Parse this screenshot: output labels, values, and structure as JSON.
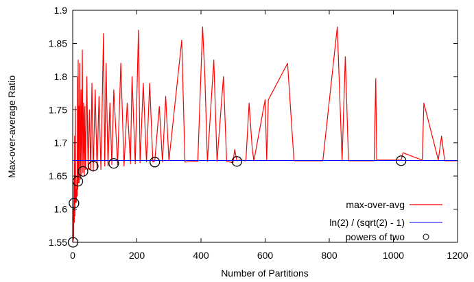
{
  "chart_data": {
    "type": "line",
    "title": "",
    "xlabel": "Number of Partitions",
    "ylabel": "Max-over-average Ratio",
    "xlim": [
      0,
      1200
    ],
    "ylim": [
      1.55,
      1.9
    ],
    "xticks": [
      0,
      200,
      400,
      600,
      800,
      1000,
      1200
    ],
    "yticks": [
      1.55,
      1.6,
      1.65,
      1.7,
      1.75,
      1.8,
      1.85,
      1.9
    ],
    "xtick_labels": [
      "0",
      "200",
      "400",
      "600",
      "800",
      "1000",
      "1200"
    ],
    "ytick_labels": [
      "1.55",
      "1.6",
      "1.65",
      "1.7",
      "1.75",
      "1.8",
      "1.85",
      "1.9"
    ],
    "grid": false,
    "legend_position": "bottom-right",
    "series": [
      {
        "name": "max-over-avg",
        "color": "#ff0000",
        "style": "line",
        "x": [
          1,
          2,
          3,
          4,
          5,
          6,
          7,
          8,
          9,
          10,
          11,
          12,
          13,
          14,
          15,
          16,
          17,
          18,
          19,
          20,
          22,
          24,
          26,
          28,
          30,
          32,
          34,
          36,
          38,
          40,
          44,
          48,
          52,
          56,
          60,
          64,
          70,
          76,
          82,
          88,
          96,
          100,
          104,
          110,
          116,
          122,
          128,
          140,
          150,
          160,
          170,
          180,
          185,
          195,
          205,
          210,
          220,
          230,
          240,
          250,
          256,
          270,
          280,
          290,
          300,
          340,
          350,
          390,
          405,
          412,
          420,
          440,
          450,
          470,
          480,
          500,
          505,
          512,
          520,
          540,
          550,
          560,
          565,
          600,
          605,
          610,
          670,
          690,
          780,
          825,
          840,
          850,
          860,
          940,
          945,
          948,
          1020,
          1024,
          1030,
          1090,
          1095,
          1140,
          1150,
          1160,
          1200
        ],
        "y": [
          1.55,
          1.6,
          1.555,
          1.64,
          1.58,
          1.71,
          1.59,
          1.755,
          1.61,
          1.63,
          1.61,
          1.62,
          1.65,
          1.62,
          1.8,
          1.63,
          1.825,
          1.64,
          1.755,
          1.64,
          1.82,
          1.645,
          1.78,
          1.65,
          1.84,
          1.655,
          1.76,
          1.65,
          1.755,
          1.66,
          1.8,
          1.66,
          1.75,
          1.66,
          1.79,
          1.657,
          1.78,
          1.66,
          1.77,
          1.66,
          1.865,
          1.665,
          1.82,
          1.665,
          1.76,
          1.667,
          1.78,
          1.667,
          1.82,
          1.665,
          1.76,
          1.668,
          1.8,
          1.668,
          1.87,
          1.67,
          1.79,
          1.671,
          1.79,
          1.671,
          1.673,
          1.755,
          1.671,
          1.77,
          1.673,
          1.855,
          1.671,
          1.672,
          1.875,
          1.802,
          1.672,
          1.825,
          1.672,
          1.8,
          1.672,
          1.67,
          1.69,
          1.673,
          1.674,
          1.673,
          1.76,
          1.69,
          1.673,
          1.765,
          1.674,
          1.765,
          1.82,
          1.673,
          1.673,
          1.875,
          1.673,
          1.83,
          1.673,
          1.673,
          1.797,
          1.674,
          1.674,
          1.674,
          1.685,
          1.674,
          1.76,
          1.674,
          1.71,
          1.673,
          1.673
        ]
      },
      {
        "name": "ln(2) / (sqrt(2) - 1)",
        "color": "#0000ff",
        "style": "hline",
        "value": 1.6734
      },
      {
        "name": "powers of two",
        "color": "#000000",
        "style": "points",
        "x": [
          1,
          4,
          16,
          32,
          64,
          128,
          256,
          512,
          1024
        ],
        "y": [
          1.55,
          1.609,
          1.642,
          1.657,
          1.665,
          1.669,
          1.671,
          1.672,
          1.673
        ]
      }
    ]
  }
}
